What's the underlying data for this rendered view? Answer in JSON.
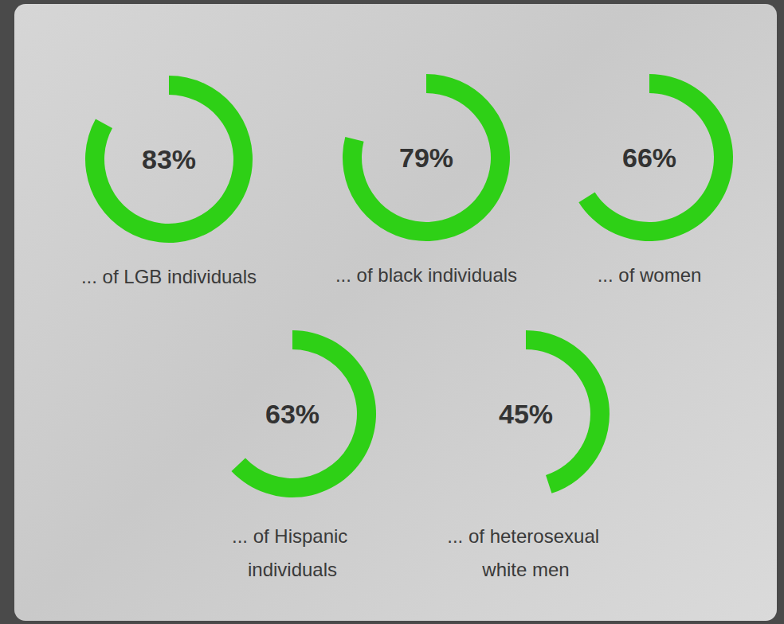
{
  "chart_data": {
    "type": "gauge",
    "categories": [
      "... of LGB individuals",
      "... of black individuals",
      "... of women",
      "... of Hispanic individuals",
      "... of heterosexual white men"
    ],
    "values": [
      83,
      79,
      66,
      63,
      45
    ],
    "value_labels": [
      "83%",
      "79%",
      "66%",
      "63%",
      "45%"
    ],
    "ylim": [
      0,
      100
    ],
    "data_labels": true,
    "color": "#2ed016"
  }
}
